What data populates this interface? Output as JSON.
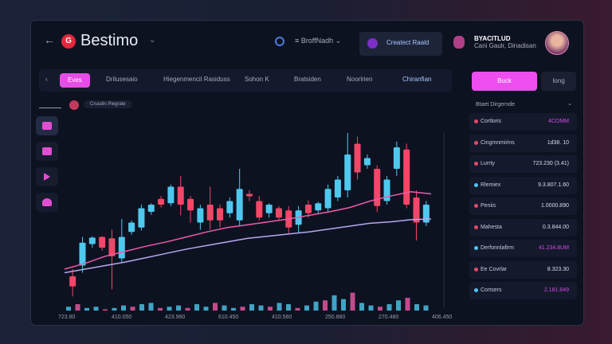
{
  "header": {
    "brand": "Bestimo",
    "menu": "BroffNadh",
    "account": "Createct Raald",
    "user_name": "BYACITLUD",
    "user_sub": "Cani Gaulr, Dinadisan"
  },
  "toolbar": {
    "items": [
      "Eves",
      "Drilusesaio",
      "Hiegenmencil Rasiduss",
      "Sohon K",
      "Bratsiden",
      "Noorlrien",
      "Chiranfian"
    ],
    "buy": "Buck",
    "sell": "Iong"
  },
  "chart": {
    "badge": "Crusdin Piegrate",
    "x_ticks": [
      "723.80",
      "410.050",
      "423.960",
      "610.450",
      "410.560",
      "250.880",
      "270.480",
      "406.450"
    ],
    "candles": [
      [
        150,
        136,
        160,
        122
      ],
      [
        165,
        197,
        205,
        155
      ],
      [
        195,
        204,
        206,
        190
      ],
      [
        205,
        190,
        206,
        186
      ],
      [
        203,
        178,
        215,
        132
      ],
      [
        175,
        205,
        230,
        170
      ],
      [
        212,
        225,
        228,
        208
      ],
      [
        218,
        245,
        250,
        214
      ],
      [
        240,
        250,
        252,
        236
      ],
      [
        258,
        250,
        262,
        246
      ],
      [
        252,
        275,
        278,
        248
      ],
      [
        275,
        250,
        290,
        235
      ],
      [
        258,
        242,
        262,
        225
      ],
      [
        225,
        245,
        250,
        215
      ],
      [
        250,
        228,
        275,
        215
      ],
      [
        245,
        228,
        250,
        218
      ],
      [
        238,
        255,
        260,
        232
      ],
      [
        228,
        272,
        300,
        220
      ],
      [
        265,
        262,
        270,
        255
      ],
      [
        255,
        232,
        262,
        228
      ],
      [
        238,
        250,
        252,
        232
      ],
      [
        245,
        232,
        248,
        228
      ],
      [
        242,
        218,
        248,
        210
      ],
      [
        222,
        242,
        248,
        210
      ],
      [
        250,
        238,
        256,
        232
      ],
      [
        242,
        252,
        254,
        238
      ],
      [
        245,
        272,
        278,
        240
      ],
      [
        260,
        285,
        290,
        255
      ],
      [
        270,
        320,
        350,
        260
      ],
      [
        335,
        295,
        345,
        285
      ],
      [
        305,
        315,
        320,
        300
      ],
      [
        300,
        248,
        305,
        240
      ],
      [
        255,
        285,
        290,
        250
      ],
      [
        300,
        330,
        338,
        290
      ],
      [
        327,
        250,
        335,
        245
      ],
      [
        260,
        225,
        270,
        200
      ],
      [
        225,
        250,
        255,
        220
      ]
    ],
    "ma_fast": [
      160,
      168,
      178,
      185,
      192,
      198,
      205,
      212,
      218,
      222,
      226,
      230,
      235,
      240,
      246,
      255,
      262,
      268,
      265
    ],
    "ma_slow": [
      155,
      160,
      165,
      170,
      176,
      182,
      188,
      193,
      198,
      203,
      206,
      209,
      212,
      216,
      220,
      224,
      226,
      229,
      230
    ],
    "volume": [
      3,
      5,
      2,
      3,
      1,
      2,
      4,
      3,
      5,
      6,
      2,
      3,
      4,
      2,
      5,
      3,
      6,
      4,
      2,
      3,
      5,
      4,
      3,
      6,
      5,
      2,
      4,
      7,
      8,
      12,
      9,
      14,
      6,
      4,
      3,
      5,
      8,
      10,
      5,
      4
    ]
  },
  "panel": {
    "title": "Btaet Dirgernde",
    "rows": [
      {
        "name": "Cortloris",
        "value": "4COMM",
        "dot": "#e8476a",
        "vcolor": "#d44ae6"
      },
      {
        "name": "Cingmnmirins",
        "value": "1d38. 10",
        "dot": "#e8476a",
        "vcolor": "#d8dce8"
      },
      {
        "name": "Lurrty",
        "value": "723.230 (3.41)",
        "dot": "#e8476a",
        "vcolor": "#d8dce8"
      },
      {
        "name": "Rlemiex",
        "value": "9.3.807.1.60",
        "dot": "#4fc3f7",
        "vcolor": "#d8dce8"
      },
      {
        "name": "Peniis",
        "value": "1.0000.890",
        "dot": "#e8476a",
        "vcolor": "#d8dce8"
      },
      {
        "name": "Mahesta",
        "value": "0.3.844.00",
        "dot": "#e8476a",
        "vcolor": "#d8dce8"
      },
      {
        "name": "Derfonnlafirm",
        "value": "41.234.8UM",
        "dot": "#4fc3f7",
        "vcolor": "#d44ae6"
      },
      {
        "name": "Ee Covrlar",
        "value": "8.323.30",
        "dot": "#e8476a",
        "vcolor": "#d8dce8"
      },
      {
        "name": "Cortsers",
        "value": "2.181.849",
        "dot": "#4fc3f7",
        "vcolor": "#d44ae6"
      }
    ]
  },
  "colors": {
    "up": "#4fc8ee",
    "down": "#f04868",
    "accent": "#ee4ef0",
    "ma_fast": "#f05aa8",
    "ma_slow": "#b6a8f0"
  }
}
